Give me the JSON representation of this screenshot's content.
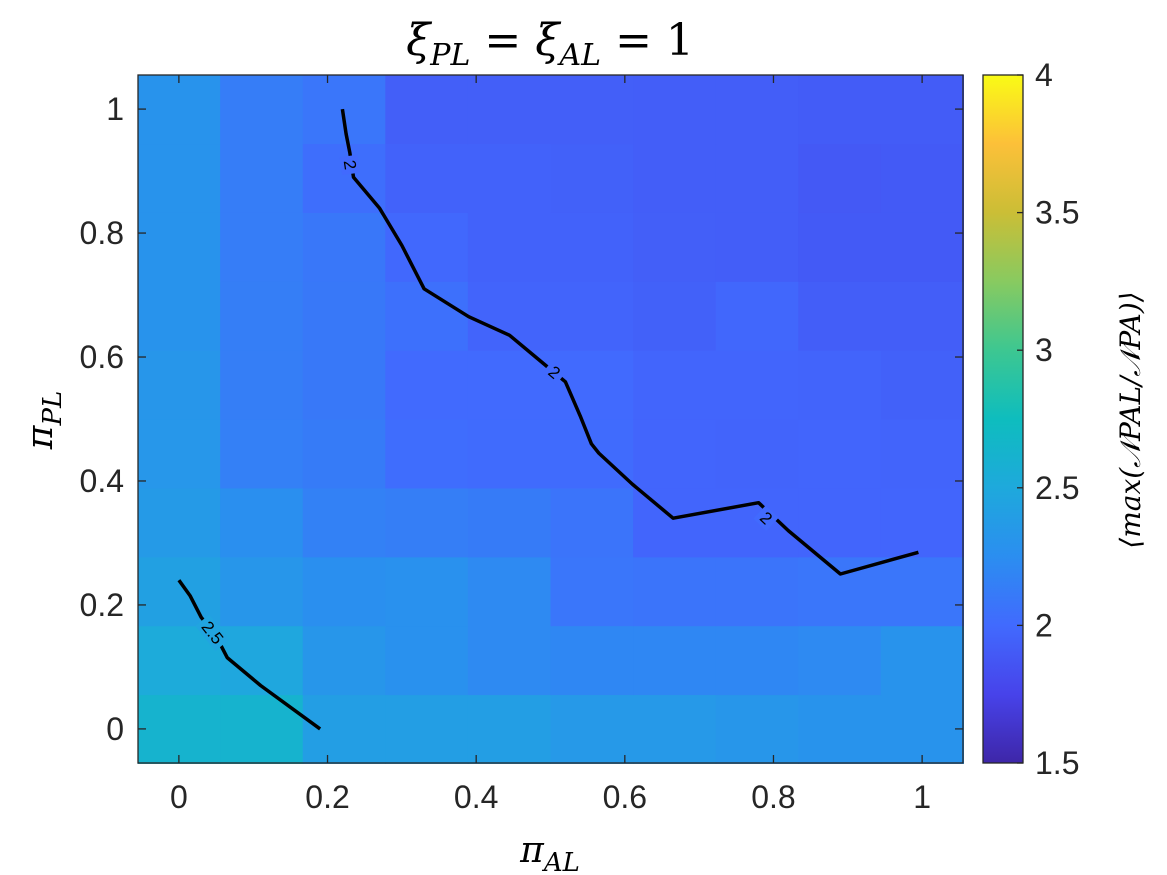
{
  "chart_data": {
    "type": "heatmap",
    "title": {
      "base": "ξ",
      "sub1": "PL",
      "mid": " = ξ",
      "sub2": "AL",
      "tail": " = 1"
    },
    "xlabel": {
      "base": "π",
      "sub": "AL"
    },
    "ylabel": {
      "base": "π",
      "sub": "PL"
    },
    "colorbar_label": "⟨max(𝒩PAL/𝒩PA)⟩",
    "x": [
      0,
      0.1111,
      0.2222,
      0.3333,
      0.4444,
      0.5556,
      0.6667,
      0.7778,
      0.8889,
      1.0
    ],
    "y": [
      0,
      0.1111,
      0.2222,
      0.3333,
      0.4444,
      0.5556,
      0.6667,
      0.7778,
      0.8889,
      1.0
    ],
    "xlim": [
      -0.055,
      1.055
    ],
    "ylim": [
      -0.055,
      1.055
    ],
    "clim": [
      1.5,
      4
    ],
    "colormap": "parula",
    "xticks": [
      0,
      0.2,
      0.4,
      0.6,
      0.8,
      1
    ],
    "xtick_labels": [
      "0",
      "0.2",
      "0.4",
      "0.6",
      "0.8",
      "1"
    ],
    "yticks": [
      0,
      0.2,
      0.4,
      0.6,
      0.8,
      1
    ],
    "ytick_labels": [
      "0",
      "0.2",
      "0.4",
      "0.6",
      "0.8",
      "1"
    ],
    "cticks": [
      1.5,
      2,
      2.5,
      3,
      3.5,
      4
    ],
    "ctick_labels": [
      "1.5",
      "2",
      "2.5",
      "3",
      "3.5",
      "4"
    ],
    "z": [
      [
        2.62,
        2.62,
        2.4,
        2.4,
        2.4,
        2.35,
        2.35,
        2.32,
        2.3,
        2.3
      ],
      [
        2.52,
        2.48,
        2.32,
        2.28,
        2.22,
        2.2,
        2.2,
        2.2,
        2.22,
        2.3
      ],
      [
        2.42,
        2.32,
        2.26,
        2.28,
        2.22,
        2.08,
        2.07,
        2.07,
        2.08,
        2.08
      ],
      [
        2.36,
        2.26,
        2.16,
        2.14,
        2.12,
        2.07,
        1.97,
        1.97,
        1.97,
        1.97
      ],
      [
        2.33,
        2.15,
        2.12,
        2.02,
        2.01,
        2.01,
        1.97,
        1.96,
        1.97,
        1.96
      ],
      [
        2.32,
        2.14,
        2.1,
        2.0,
        2.0,
        2.0,
        1.97,
        1.97,
        1.96,
        1.94
      ],
      [
        2.3,
        2.14,
        2.1,
        2.04,
        1.96,
        1.96,
        1.94,
        1.98,
        1.92,
        1.92
      ],
      [
        2.3,
        2.13,
        2.09,
        1.99,
        1.95,
        1.95,
        1.93,
        1.92,
        1.9,
        1.9
      ],
      [
        2.3,
        2.13,
        2.03,
        1.95,
        1.95,
        1.94,
        1.92,
        1.92,
        1.89,
        1.9
      ],
      [
        2.3,
        2.13,
        2.08,
        1.93,
        1.93,
        1.93,
        1.92,
        1.92,
        1.91,
        1.91
      ]
    ],
    "contours": [
      {
        "level": "2",
        "points": [
          [
            0.22,
            1.0
          ],
          [
            0.225,
            0.96
          ],
          [
            0.23,
            0.93
          ],
          [
            0.235,
            0.89
          ],
          [
            0.27,
            0.84
          ],
          [
            0.3,
            0.78
          ],
          [
            0.33,
            0.71
          ],
          [
            0.39,
            0.665
          ],
          [
            0.445,
            0.635
          ],
          [
            0.48,
            0.6
          ],
          [
            0.505,
            0.575
          ],
          [
            0.52,
            0.56
          ],
          [
            0.54,
            0.505
          ],
          [
            0.555,
            0.46
          ],
          [
            0.565,
            0.445
          ],
          [
            0.61,
            0.395
          ],
          [
            0.665,
            0.34
          ],
          [
            0.78,
            0.365
          ],
          [
            0.82,
            0.32
          ],
          [
            0.89,
            0.25
          ],
          [
            0.995,
            0.285
          ]
        ],
        "labels": [
          {
            "text": "2",
            "x": 0.23,
            "y": 0.91
          },
          {
            "text": "2",
            "x": 0.505,
            "y": 0.575
          },
          {
            "text": "2",
            "x": 0.79,
            "y": 0.34
          }
        ]
      },
      {
        "level": "2.5",
        "points": [
          [
            0.0,
            0.24
          ],
          [
            0.015,
            0.215
          ],
          [
            0.03,
            0.18
          ],
          [
            0.05,
            0.15
          ],
          [
            0.065,
            0.115
          ],
          [
            0.11,
            0.07
          ],
          [
            0.19,
            0.0
          ]
        ],
        "labels": [
          {
            "text": "2.5",
            "x": 0.045,
            "y": 0.155
          }
        ]
      }
    ]
  }
}
